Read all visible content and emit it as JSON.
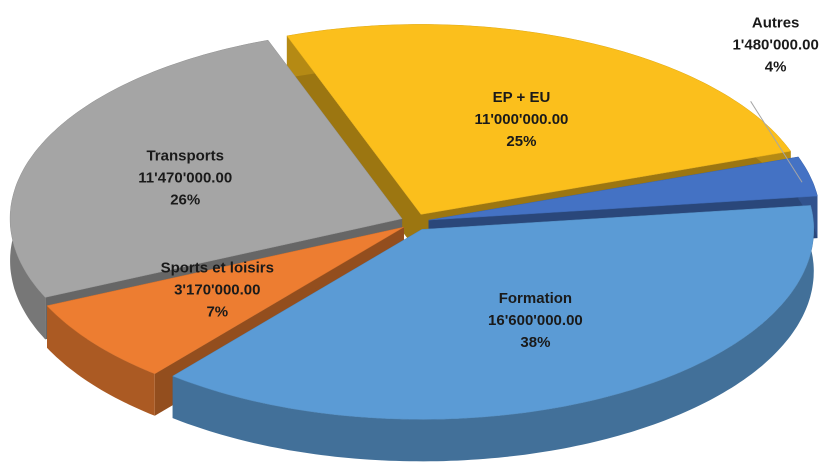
{
  "chart_data": {
    "type": "pie",
    "categories": [
      "EP + EU",
      "Autres",
      "Formation",
      "Sports et loisirs",
      "Transports"
    ],
    "values": [
      11000000,
      1480000,
      16600000,
      3170000,
      11470000
    ],
    "value_labels": [
      "11'000'000.00",
      "1'480'000.00",
      "16'600'000.00",
      "3'170'000.00",
      "11'470'000.00"
    ],
    "percentages": [
      25,
      4,
      38,
      7,
      26
    ],
    "percentage_labels": [
      "25%",
      "4%",
      "38%",
      "7%",
      "26%"
    ],
    "colors": [
      "#fbbf1c",
      "#4472c4",
      "#5b9bd5",
      "#ed7d31",
      "#a5a5a5"
    ],
    "three_d": true,
    "exploded": true
  }
}
